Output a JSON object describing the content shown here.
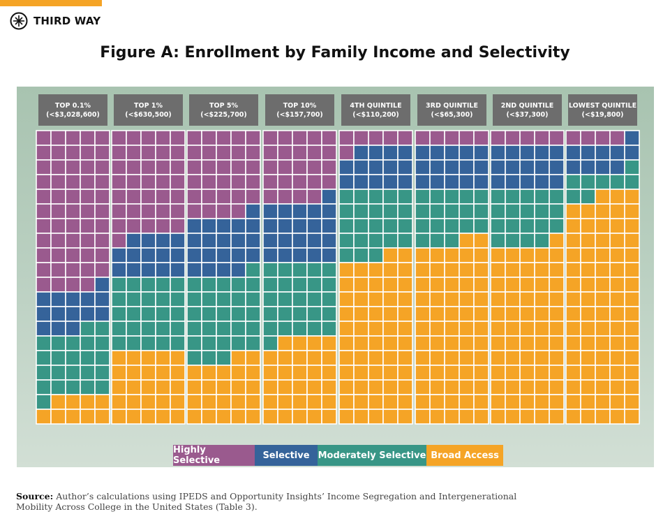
{
  "brand": {
    "name": "THIRD WAY",
    "accent": "#f5a426"
  },
  "title": "Figure A: Enrollment by Family Income and Selectivity",
  "chart_data": {
    "type": "waffle",
    "title": "Figure A: Enrollment by Family Income and Selectivity",
    "units_per_group": 100,
    "grid": {
      "columns": 5,
      "rows": 20,
      "fill_order": "top-left to right, top to bottom"
    },
    "groups": [
      {
        "label": "TOP 0.1%",
        "sublabel": "(<$3,028,600)"
      },
      {
        "label": "TOP 1%",
        "sublabel": "(<$630,500)"
      },
      {
        "label": "TOP 5%",
        "sublabel": "(<$225,700)"
      },
      {
        "label": "TOP 10%",
        "sublabel": "(<$157,700)"
      },
      {
        "label": "4TH QUINTILE",
        "sublabel": "(<$110,200)"
      },
      {
        "label": "3RD QUINTILE",
        "sublabel": "(<$65,300)"
      },
      {
        "label": "2ND QUINTILE",
        "sublabel": "(<$37,300)"
      },
      {
        "label": "LOWEST QUINTILE",
        "sublabel": "(<$19,800)"
      }
    ],
    "series": [
      {
        "name": "Highly Selective",
        "color": "#9a5a8e",
        "values": [
          54,
          36,
          29,
          24,
          6,
          5,
          5,
          4
        ]
      },
      {
        "name": "Selective",
        "color": "#35639a",
        "values": [
          14,
          14,
          20,
          21,
          14,
          15,
          15,
          10
        ]
      },
      {
        "name": "Moderately Selective",
        "color": "#389686",
        "values": [
          23,
          25,
          29,
          26,
          23,
          18,
          19,
          8
        ]
      },
      {
        "name": "Broad Access",
        "color": "#f5a426",
        "values": [
          9,
          25,
          22,
          29,
          57,
          62,
          61,
          78
        ]
      }
    ],
    "legend_position": "bottom-center"
  },
  "source": {
    "label": "Source:",
    "text": " Author’s calculations using IPEDS and Opportunity Insights’ Income Segregation and Intergenerational Mobility Across College in the United States (Table 3)."
  }
}
